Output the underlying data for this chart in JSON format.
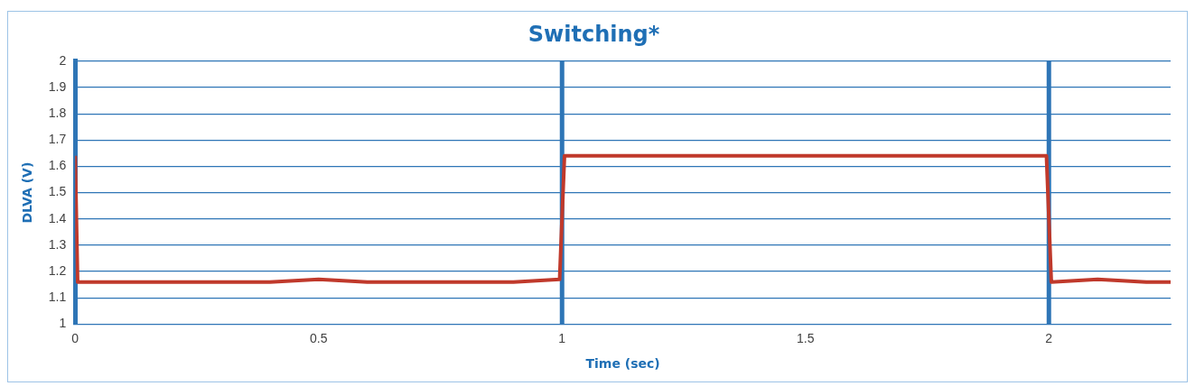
{
  "chart_data": {
    "type": "line",
    "title": "Switching*",
    "xlabel": "Time (sec)",
    "ylabel": "DLVA (V)",
    "xlim": [
      0,
      2.25
    ],
    "xticks": [
      0,
      0.5,
      1,
      1.5,
      2
    ],
    "ylim": [
      1,
      2
    ],
    "yticks": [
      1,
      1.1,
      1.2,
      1.3,
      1.4,
      1.5,
      1.6,
      1.7,
      1.8,
      1.9,
      2
    ],
    "grid": "y",
    "legend": false,
    "marker": "none",
    "line_style": "solid",
    "ref_lines": [
      {
        "axis": "x",
        "value": 1,
        "color": "#2e75b6"
      },
      {
        "axis": "x",
        "value": 2,
        "color": "#2e75b6"
      }
    ],
    "series": [
      {
        "color": "#c0392b",
        "x": [
          0,
          0.005,
          0.1,
          0.2,
          0.3,
          0.4,
          0.5,
          0.6,
          0.7,
          0.8,
          0.9,
          0.995,
          1.005,
          1.1,
          1.2,
          1.3,
          1.4,
          1.5,
          1.6,
          1.7,
          1.8,
          1.9,
          1.995,
          2.005,
          2.1,
          2.2,
          2.25
        ],
        "values": [
          1.64,
          1.16,
          1.16,
          1.16,
          1.16,
          1.16,
          1.17,
          1.16,
          1.16,
          1.16,
          1.16,
          1.17,
          1.64,
          1.64,
          1.64,
          1.64,
          1.64,
          1.64,
          1.64,
          1.64,
          1.64,
          1.64,
          1.64,
          1.16,
          1.17,
          1.16,
          1.16
        ]
      }
    ]
  }
}
